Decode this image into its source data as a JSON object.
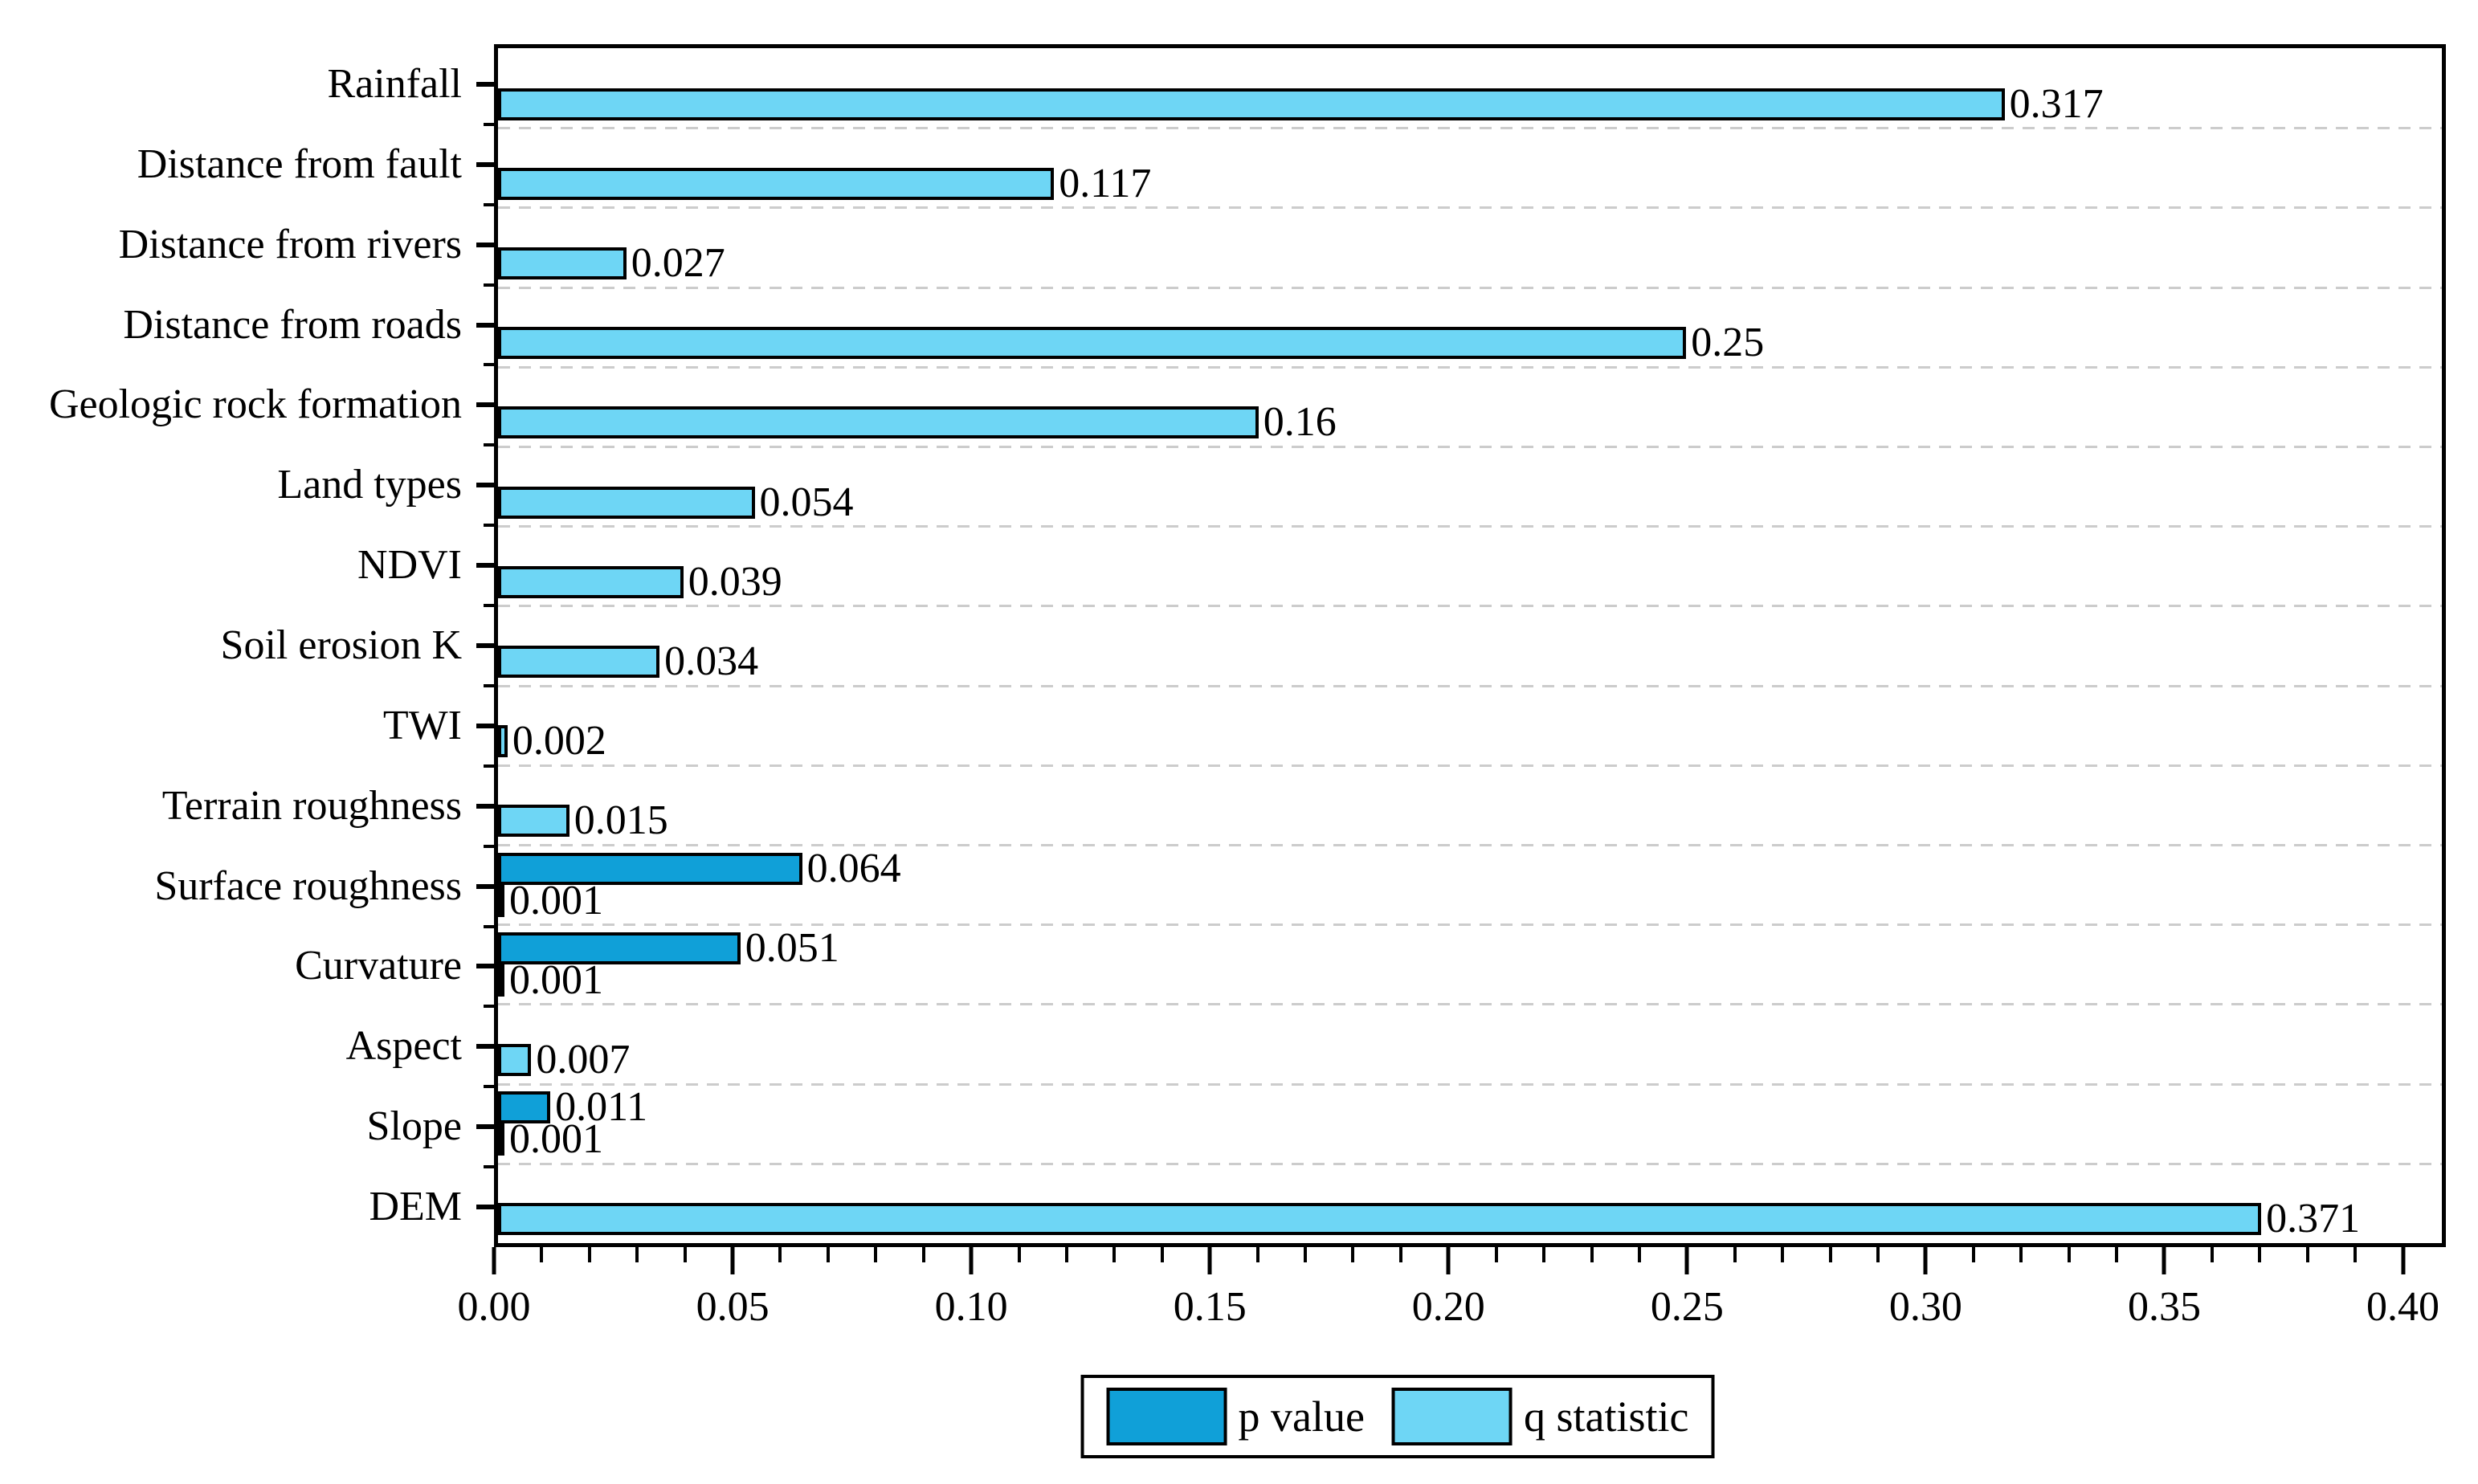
{
  "chart_data": {
    "type": "bar",
    "orientation": "horizontal",
    "title": "",
    "xlabel": "",
    "ylabel": "",
    "xlim": [
      0,
      0.4
    ],
    "x_display_max": 0.409,
    "x_major_ticks": [
      "0.00",
      "0.05",
      "0.10",
      "0.15",
      "0.20",
      "0.25",
      "0.30",
      "0.35",
      "0.40"
    ],
    "x_minor_tick_step": 0.01,
    "grid": "horizontal dashed lines at category boundaries",
    "categories": [
      "Rainfall",
      "Distance from fault",
      "Distance from rivers",
      "Distance from roads",
      "Geologic rock formation",
      "Land types",
      "NDVI",
      "Soil erosion K",
      "TWI",
      "Terrain roughness",
      "Surface roughness",
      "Curvature",
      "Aspect",
      "Slope",
      "DEM"
    ],
    "series": [
      {
        "name": "p value",
        "color": "#10A0D8",
        "values": [
          null,
          null,
          null,
          null,
          null,
          null,
          null,
          null,
          null,
          null,
          0.064,
          0.051,
          null,
          0.011,
          null
        ],
        "labels": [
          null,
          null,
          null,
          null,
          null,
          null,
          null,
          null,
          null,
          null,
          "0.064",
          "0.051",
          null,
          "0.011",
          null
        ]
      },
      {
        "name": "q statistic",
        "color": "#6ED6F5",
        "values": [
          0.317,
          0.117,
          0.027,
          0.25,
          0.16,
          0.054,
          0.039,
          0.034,
          0.002,
          0.015,
          0.001,
          0.001,
          0.007,
          0.001,
          0.371
        ],
        "labels": [
          "0.317",
          "0.117",
          "0.027",
          "0.25",
          "0.16",
          "0.054",
          "0.039",
          "0.034",
          "0.002",
          "0.015",
          "0.001",
          "0.001",
          "0.007",
          "0.001",
          "0.371"
        ]
      }
    ],
    "legend": {
      "position": "bottom-center",
      "entries": [
        {
          "label": "p value",
          "color": "#10A0D8"
        },
        {
          "label": "q statistic",
          "color": "#6ED6F5"
        }
      ]
    }
  },
  "colors": {
    "background": "#FFFFFF",
    "axis_and_frame": "#000000",
    "bar_border": "#000000",
    "grid": "#CCCCCC",
    "p_value": "#10A0D8",
    "q_statistic": "#6ED6F5"
  }
}
